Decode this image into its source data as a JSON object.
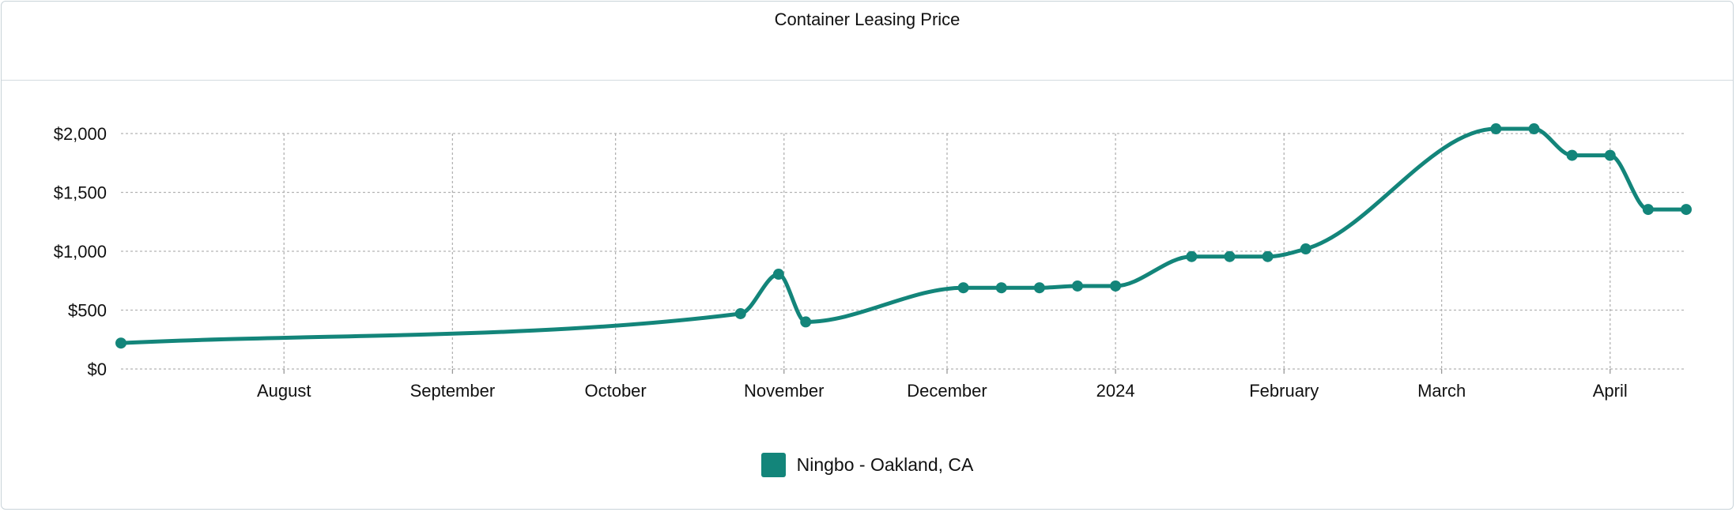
{
  "chart_data": {
    "type": "line",
    "title": "Container Leasing Price",
    "xlabel": "",
    "ylabel": "",
    "ylim": [
      0,
      2000
    ],
    "xlim": [
      "2023-07-02",
      "2024-04-15"
    ],
    "x_ticks": [
      {
        "date": "2023-08-01",
        "label": "August"
      },
      {
        "date": "2023-09-01",
        "label": "September"
      },
      {
        "date": "2023-10-01",
        "label": "October"
      },
      {
        "date": "2023-11-01",
        "label": "November"
      },
      {
        "date": "2023-12-01",
        "label": "December"
      },
      {
        "date": "2024-01-01",
        "label": "2024"
      },
      {
        "date": "2024-02-01",
        "label": "February"
      },
      {
        "date": "2024-03-01",
        "label": "March"
      },
      {
        "date": "2024-04-01",
        "label": "April"
      }
    ],
    "y_ticks": [
      {
        "value": 0,
        "label": "$0"
      },
      {
        "value": 500,
        "label": "$500"
      },
      {
        "value": 1000,
        "label": "$1,000"
      },
      {
        "value": 1500,
        "label": "$1,500"
      },
      {
        "value": 2000,
        "label": "$2,000"
      }
    ],
    "grid": true,
    "legend_position": "bottom",
    "series": [
      {
        "name": "Ningbo - Oakland, CA",
        "color": "#13857a",
        "points": [
          {
            "x": "2023-07-02",
            "y": 220
          },
          {
            "x": "2023-10-24",
            "y": 470
          },
          {
            "x": "2023-10-31",
            "y": 805
          },
          {
            "x": "2023-11-05",
            "y": 400
          },
          {
            "x": "2023-12-04",
            "y": 690
          },
          {
            "x": "2023-12-11",
            "y": 690
          },
          {
            "x": "2023-12-18",
            "y": 690
          },
          {
            "x": "2023-12-25",
            "y": 705
          },
          {
            "x": "2024-01-01",
            "y": 705
          },
          {
            "x": "2024-01-15",
            "y": 955
          },
          {
            "x": "2024-01-22",
            "y": 955
          },
          {
            "x": "2024-01-29",
            "y": 955
          },
          {
            "x": "2024-02-05",
            "y": 1020
          },
          {
            "x": "2024-03-11",
            "y": 2040
          },
          {
            "x": "2024-03-18",
            "y": 2040
          },
          {
            "x": "2024-03-25",
            "y": 1815
          },
          {
            "x": "2024-04-01",
            "y": 1815
          },
          {
            "x": "2024-04-08",
            "y": 1355
          },
          {
            "x": "2024-04-15",
            "y": 1355
          }
        ]
      }
    ]
  }
}
